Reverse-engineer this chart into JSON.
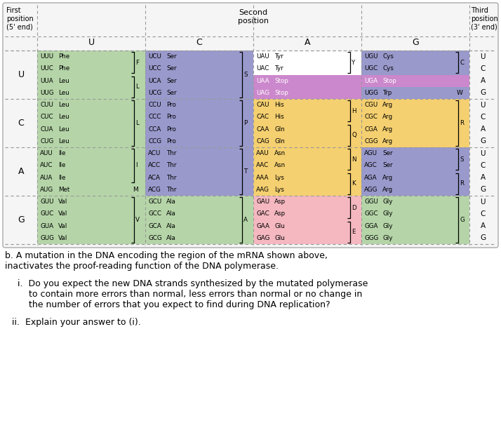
{
  "bg_color": "#ffffff",
  "cell_colors": {
    "UU": "#b5d5a8",
    "UC": "#9999cc",
    "UA": "#ffffff",
    "UG": "#9999cc",
    "CU": "#b5d5a8",
    "CC": "#9999cc",
    "CA": "#f5d070",
    "CG": "#f5d070",
    "AU": "#b5d5a8",
    "AC": "#9999cc",
    "AA": "#f5d070",
    "AG": "#9999cc",
    "GU": "#b5d5a8",
    "GC": "#b5d5a8",
    "GA": "#f5b8c0",
    "GG": "#b5d5a8"
  },
  "stop_color": "#cc88cc",
  "cell_data": {
    "UU": [
      [
        "UUU",
        "Phe"
      ],
      [
        "UUC",
        "Phe"
      ],
      [
        "UUA",
        "Leu"
      ],
      [
        "UUG",
        "Leu"
      ]
    ],
    "UC": [
      [
        "UCU",
        "Ser"
      ],
      [
        "UCC",
        "Ser"
      ],
      [
        "UCA",
        "Ser"
      ],
      [
        "UCG",
        "Ser"
      ]
    ],
    "UA": [
      [
        "UAU",
        "Tyr"
      ],
      [
        "UAC",
        "Tyr"
      ],
      [
        "UAA",
        "Stop"
      ],
      [
        "UAG",
        "Stop"
      ]
    ],
    "UG": [
      [
        "UGU",
        "Cys"
      ],
      [
        "UGC",
        "Cys"
      ],
      [
        "UGA",
        "Stop"
      ],
      [
        "UGG",
        "Trp"
      ]
    ],
    "CU": [
      [
        "CUU",
        "Leu"
      ],
      [
        "CUC",
        "Leu"
      ],
      [
        "CUA",
        "Leu"
      ],
      [
        "CUG",
        "Leu"
      ]
    ],
    "CC": [
      [
        "CCU",
        "Pro"
      ],
      [
        "CCC",
        "Pro"
      ],
      [
        "CCA",
        "Pro"
      ],
      [
        "CCG",
        "Pro"
      ]
    ],
    "CA": [
      [
        "CAU",
        "His"
      ],
      [
        "CAC",
        "His"
      ],
      [
        "CAA",
        "Gln"
      ],
      [
        "CAG",
        "Gln"
      ]
    ],
    "CG": [
      [
        "CGU",
        "Arg"
      ],
      [
        "CGC",
        "Arg"
      ],
      [
        "CGA",
        "Arg"
      ],
      [
        "CGG",
        "Arg"
      ]
    ],
    "AU": [
      [
        "AUU",
        "Ile"
      ],
      [
        "AUC",
        "Ile"
      ],
      [
        "AUA",
        "Ile"
      ],
      [
        "AUG",
        "Met"
      ]
    ],
    "AC": [
      [
        "ACU",
        "Thr"
      ],
      [
        "ACC",
        "Thr"
      ],
      [
        "ACA",
        "Thr"
      ],
      [
        "ACG",
        "Thr"
      ]
    ],
    "AA": [
      [
        "AAU",
        "Asn"
      ],
      [
        "AAC",
        "Asn"
      ],
      [
        "AAA",
        "Lys"
      ],
      [
        "AAG",
        "Lys"
      ]
    ],
    "AG": [
      [
        "AGU",
        "Ser"
      ],
      [
        "AGC",
        "Ser"
      ],
      [
        "AGA",
        "Arg"
      ],
      [
        "AGG",
        "Arg"
      ]
    ],
    "GU": [
      [
        "GUU",
        "Val"
      ],
      [
        "GUC",
        "Val"
      ],
      [
        "GUA",
        "Val"
      ],
      [
        "GUG",
        "Val"
      ]
    ],
    "GC": [
      [
        "GCU",
        "Ala"
      ],
      [
        "GCC",
        "Ala"
      ],
      [
        "GCA",
        "Ala"
      ],
      [
        "GCG",
        "Ala"
      ]
    ],
    "GA": [
      [
        "GAU",
        "Asp"
      ],
      [
        "GAC",
        "Asp"
      ],
      [
        "GAA",
        "Glu"
      ],
      [
        "GAG",
        "Glu"
      ]
    ],
    "GG": [
      [
        "GGU",
        "Gly"
      ],
      [
        "GGC",
        "Gly"
      ],
      [
        "GGA",
        "Gly"
      ],
      [
        "GGG",
        "Gly"
      ]
    ]
  },
  "brackets": {
    "UU": [
      [
        0,
        1,
        "F"
      ],
      [
        2,
        3,
        "L"
      ]
    ],
    "UC": [
      [
        0,
        3,
        "S"
      ]
    ],
    "UA": [
      [
        0,
        1,
        "Y"
      ]
    ],
    "UG": [
      [
        0,
        1,
        "C"
      ]
    ],
    "CU": [
      [
        0,
        3,
        "L"
      ]
    ],
    "CC": [
      [
        0,
        3,
        "P"
      ]
    ],
    "CA": [
      [
        0,
        1,
        "H"
      ],
      [
        2,
        3,
        "Q"
      ]
    ],
    "CG": [
      [
        0,
        3,
        "R"
      ]
    ],
    "AU": [
      [
        0,
        2,
        "I"
      ]
    ],
    "AC": [
      [
        0,
        3,
        "T"
      ]
    ],
    "AA": [
      [
        0,
        1,
        "N"
      ],
      [
        2,
        3,
        "K"
      ]
    ],
    "AG": [
      [
        0,
        1,
        "S"
      ],
      [
        2,
        3,
        "R"
      ]
    ],
    "GU": [
      [
        0,
        3,
        "V"
      ]
    ],
    "GC": [
      [
        0,
        3,
        "A"
      ]
    ],
    "GA": [
      [
        0,
        1,
        "D"
      ],
      [
        2,
        3,
        "E"
      ]
    ],
    "GG": [
      [
        0,
        3,
        "G"
      ]
    ]
  },
  "stop_cells": {
    "UA": [
      2,
      3
    ],
    "UG": [
      2
    ]
  },
  "special_singles": {
    "AU_3": "M",
    "UG_3": "W"
  },
  "rows": [
    "U",
    "C",
    "A",
    "G"
  ],
  "cols": [
    "U",
    "C",
    "A",
    "G"
  ]
}
